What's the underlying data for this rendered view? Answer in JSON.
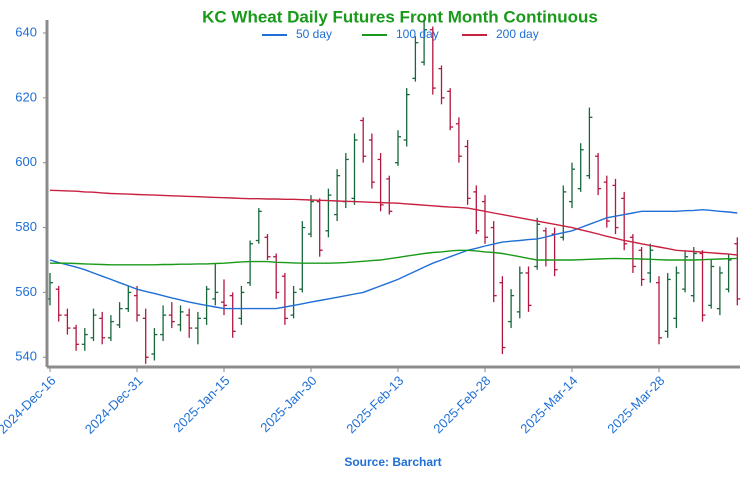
{
  "chart_data": {
    "type": "ohlc",
    "title": "KC Wheat Daily Futures Front Month Continuous",
    "source": "Source: Barchart",
    "categories": [
      "2024-Dec-16",
      null,
      null,
      null,
      null,
      null,
      null,
      null,
      null,
      null,
      "2024-Dec-31",
      null,
      null,
      null,
      null,
      null,
      null,
      null,
      null,
      null,
      "2025-Jan-15",
      null,
      null,
      null,
      null,
      null,
      null,
      null,
      null,
      null,
      "2025-Jan-30",
      null,
      null,
      null,
      null,
      null,
      null,
      null,
      null,
      null,
      "2025-Feb-13",
      null,
      null,
      null,
      null,
      null,
      null,
      null,
      null,
      null,
      "2025-Feb-28",
      null,
      null,
      null,
      null,
      null,
      null,
      null,
      null,
      null,
      "2025-Mar-14",
      null,
      null,
      null,
      null,
      null,
      null,
      null,
      null,
      null,
      "2025-Mar-28",
      null,
      null,
      null,
      null,
      null,
      null,
      null,
      null,
      null
    ],
    "open": [
      558,
      561,
      553,
      549,
      544,
      546,
      552,
      546,
      550,
      555,
      559,
      552,
      541,
      547,
      553,
      550,
      553,
      549,
      552,
      558,
      557,
      559,
      552,
      563,
      576,
      577,
      571,
      565,
      553,
      561,
      578,
      588,
      579,
      584,
      588,
      589,
      613,
      607,
      601,
      595,
      600,
      607,
      626,
      631,
      641,
      629,
      622,
      612,
      605,
      591,
      588,
      580,
      563,
      551,
      554,
      566,
      568,
      579,
      578,
      577,
      588,
      592,
      596,
      602,
      594,
      593,
      589,
      577,
      573,
      566,
      563,
      548,
      552,
      561,
      559,
      572,
      556,
      555,
      561,
      575
    ],
    "high": [
      566,
      562,
      555,
      550,
      549,
      555,
      554,
      553,
      557,
      562,
      562,
      555,
      549,
      556,
      557,
      556,
      555,
      554,
      562,
      569,
      564,
      560,
      562,
      576,
      586,
      578,
      572,
      566,
      562,
      582,
      590,
      589,
      592,
      598,
      603,
      609,
      614,
      609,
      603,
      596,
      610,
      623,
      639,
      644,
      642,
      630,
      623,
      614,
      607,
      593,
      590,
      582,
      565,
      561,
      568,
      568,
      583,
      580,
      580,
      593,
      600,
      606,
      617,
      603,
      596,
      595,
      591,
      578,
      574,
      575,
      565,
      566,
      568,
      573,
      574,
      573,
      570,
      568,
      572,
      577
    ],
    "low": [
      556,
      551,
      547,
      542,
      542,
      545,
      544,
      545,
      549,
      554,
      551,
      538,
      539,
      545,
      549,
      548,
      546,
      544,
      550,
      556,
      553,
      546,
      550,
      562,
      575,
      570,
      558,
      550,
      552,
      560,
      577,
      571,
      577,
      582,
      586,
      587,
      600,
      592,
      585,
      584,
      599,
      605,
      625,
      630,
      621,
      618,
      610,
      600,
      587,
      578,
      575,
      557,
      541,
      549,
      552,
      554,
      567,
      568,
      565,
      576,
      586,
      591,
      595,
      590,
      580,
      578,
      573,
      566,
      562,
      563,
      544,
      546,
      549,
      560,
      557,
      551,
      555,
      553,
      560,
      556
    ],
    "close": [
      563,
      553,
      549,
      544,
      547,
      553,
      546,
      551,
      555,
      560,
      553,
      540,
      547,
      553,
      551,
      554,
      549,
      552,
      561,
      560,
      556,
      548,
      560,
      575,
      585,
      571,
      560,
      552,
      560,
      580,
      588,
      573,
      590,
      596,
      601,
      607,
      602,
      594,
      587,
      585,
      608,
      621,
      637,
      641,
      623,
      620,
      611,
      602,
      589,
      579,
      577,
      559,
      543,
      559,
      566,
      556,
      581,
      570,
      567,
      591,
      598,
      604,
      614,
      592,
      582,
      580,
      575,
      568,
      564,
      573,
      546,
      564,
      566,
      571,
      572,
      553,
      568,
      566,
      570,
      558
    ],
    "up_color": "#17673a",
    "down_color": "#b3163f",
    "series": [
      {
        "name": "50 day",
        "color": "#1f6fd6",
        "values": [
          570,
          569.2,
          568.5,
          567.8,
          567,
          566,
          565,
          564,
          563,
          562,
          561,
          560.3,
          559.7,
          559,
          558.3,
          557.7,
          557,
          556.5,
          556,
          555.5,
          555,
          555,
          555,
          555,
          555,
          555,
          555,
          555.5,
          556,
          556.5,
          557,
          557.5,
          558,
          558.5,
          559,
          559.5,
          560,
          561,
          562,
          563,
          564,
          565.3,
          566.5,
          567.8,
          569,
          570,
          571,
          572,
          573,
          573.6,
          574.3,
          574.9,
          575.5,
          575.8,
          576,
          576.3,
          576.5,
          577.1,
          577.8,
          578.4,
          579,
          580,
          581,
          582,
          583,
          583.5,
          584,
          584.5,
          585,
          585,
          585,
          585,
          585,
          585.2,
          585.3,
          585.5,
          585.3,
          585,
          584.8,
          584.5
        ]
      },
      {
        "name": "100 day",
        "color": "#1a9a1a",
        "values": [
          569,
          569,
          569,
          568.9,
          568.8,
          568.7,
          568.6,
          568.5,
          568.5,
          568.5,
          568.5,
          568.5,
          568.5,
          568.6,
          568.6,
          568.7,
          568.7,
          568.8,
          568.8,
          568.9,
          569,
          569.2,
          569.4,
          569.5,
          569.5,
          569.5,
          569.3,
          569.2,
          569.1,
          569,
          569,
          569,
          569,
          569.1,
          569.2,
          569.4,
          569.6,
          569.8,
          570,
          570.4,
          570.8,
          571.2,
          571.6,
          572,
          572.3,
          572.5,
          572.8,
          573,
          573,
          572.8,
          572.5,
          572.3,
          572,
          571.5,
          571,
          570.5,
          570,
          570,
          570,
          570,
          570,
          570.1,
          570.2,
          570.3,
          570.4,
          570.5,
          570.4,
          570.4,
          570.3,
          570.2,
          570.1,
          570,
          570,
          570,
          570,
          570.1,
          570.2,
          570.3,
          570.4,
          570.5
        ]
      },
      {
        "name": "200 day",
        "color": "#c8203f",
        "values": [
          591.5,
          591.4,
          591.3,
          591.2,
          591,
          590.9,
          590.7,
          590.5,
          590.4,
          590.3,
          590.2,
          590.1,
          590,
          589.9,
          589.8,
          589.7,
          589.6,
          589.5,
          589.4,
          589.3,
          589.2,
          589.1,
          589,
          588.9,
          588.9,
          588.8,
          588.8,
          588.7,
          588.7,
          588.6,
          588.5,
          588.4,
          588.3,
          588.2,
          588.1,
          588,
          587.9,
          587.8,
          587.7,
          587.6,
          587.5,
          587.3,
          587.1,
          586.9,
          586.7,
          586.5,
          586.3,
          586.2,
          586,
          585.5,
          585,
          584.5,
          584,
          583.5,
          583,
          582.5,
          582,
          581.5,
          581,
          580.5,
          580,
          579.3,
          578.7,
          578,
          577.3,
          576.7,
          576,
          575.5,
          575,
          574.5,
          574,
          573.5,
          573,
          572.8,
          572.6,
          572.4,
          572.2,
          572,
          571.8,
          571.5
        ]
      }
    ],
    "ylim": [
      537,
      644
    ],
    "yticks": [
      540,
      560,
      580,
      600,
      620,
      640
    ]
  }
}
